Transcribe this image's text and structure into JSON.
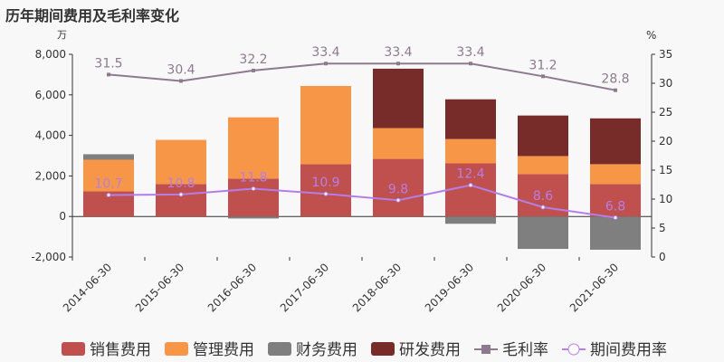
{
  "title": "历年期间费用及毛利率变化",
  "chart_data": {
    "type": "bar",
    "title": "历年期间费用及毛利率变化",
    "ylabel_left": "万",
    "ylabel_right": "%",
    "ylim_left": [
      -2000,
      8000
    ],
    "yticks_left": [
      -2000,
      0,
      2000,
      4000,
      6000,
      8000
    ],
    "ytick_labels_left": [
      "-2,000",
      "0",
      "2,000",
      "4,000",
      "6,000",
      "8,000"
    ],
    "ylim_right": [
      0,
      35
    ],
    "yticks_right": [
      0,
      5,
      10,
      15,
      20,
      25,
      30,
      35
    ],
    "categories": [
      "2014-06-30",
      "2015-06-30",
      "2016-06-30",
      "2017-06-30",
      "2018-06-30",
      "2019-06-30",
      "2020-06-30",
      "2021-06-30"
    ],
    "series": [
      {
        "name": "销售费用",
        "type": "bar",
        "color": "#c0504d",
        "values": [
          1240,
          1600,
          1870,
          2580,
          2840,
          2620,
          2090,
          1600
        ]
      },
      {
        "name": "管理费用",
        "type": "bar",
        "color": "#f79646",
        "values": [
          1560,
          2180,
          3020,
          3860,
          1520,
          1200,
          890,
          980
        ]
      },
      {
        "name": "财务费用",
        "type": "bar",
        "color": "#7f7f7f",
        "values": [
          270,
          0,
          -100,
          0,
          0,
          -360,
          -1600,
          -1640
        ]
      },
      {
        "name": "研发费用",
        "type": "bar",
        "color": "#772c2a",
        "values": [
          0,
          0,
          0,
          0,
          2930,
          1960,
          2000,
          2260
        ]
      },
      {
        "name": "毛利率",
        "type": "line",
        "axis": "right",
        "color": "#8e7a8e",
        "values": [
          31.5,
          30.4,
          32.2,
          33.4,
          33.4,
          33.4,
          31.2,
          28.8
        ]
      },
      {
        "name": "期间费用率",
        "type": "line",
        "axis": "right",
        "color": "#b57ee6",
        "values": [
          10.7,
          10.8,
          11.8,
          10.9,
          9.8,
          12.4,
          8.6,
          6.8
        ]
      }
    ]
  }
}
